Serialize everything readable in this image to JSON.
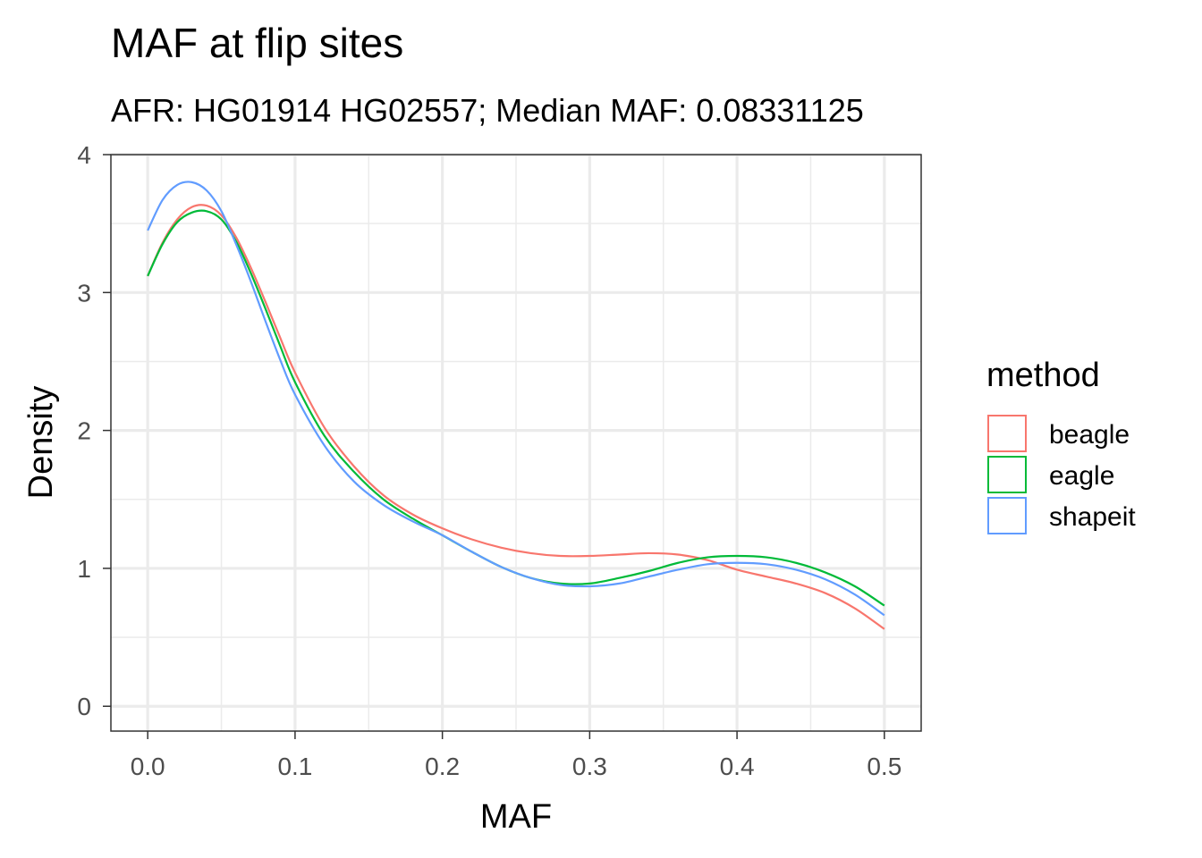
{
  "chart_data": {
    "type": "line",
    "title": "MAF at flip sites",
    "subtitle": "AFR: HG01914 HG02557; Median MAF: 0.08331125",
    "xlabel": "MAF",
    "ylabel": "Density",
    "xlim": [
      -0.025,
      0.525
    ],
    "ylim": [
      -0.18,
      4.0
    ],
    "x_ticks": [
      0.0,
      0.1,
      0.2,
      0.3,
      0.4,
      0.5
    ],
    "x_tick_labels": [
      "0.0",
      "0.1",
      "0.2",
      "0.3",
      "0.4",
      "0.5"
    ],
    "y_ticks": [
      0,
      1,
      2,
      3,
      4
    ],
    "y_tick_labels": [
      "0",
      "1",
      "2",
      "3",
      "4"
    ],
    "grid": true,
    "legend_title": "method",
    "legend_position": "right",
    "series": [
      {
        "name": "beagle",
        "color": "#F8766D",
        "x": [
          0.0,
          0.01,
          0.02,
          0.03,
          0.04,
          0.05,
          0.06,
          0.07,
          0.08,
          0.09,
          0.1,
          0.12,
          0.14,
          0.16,
          0.18,
          0.2,
          0.22,
          0.24,
          0.26,
          0.28,
          0.3,
          0.32,
          0.34,
          0.36,
          0.38,
          0.4,
          0.42,
          0.44,
          0.46,
          0.48,
          0.5
        ],
        "y": [
          3.12,
          3.36,
          3.53,
          3.62,
          3.63,
          3.56,
          3.4,
          3.18,
          2.93,
          2.67,
          2.42,
          2.02,
          1.74,
          1.53,
          1.39,
          1.29,
          1.21,
          1.15,
          1.11,
          1.09,
          1.09,
          1.1,
          1.11,
          1.1,
          1.06,
          0.99,
          0.94,
          0.89,
          0.82,
          0.71,
          0.56
        ]
      },
      {
        "name": "eagle",
        "color": "#00BA38",
        "x": [
          0.0,
          0.01,
          0.02,
          0.03,
          0.04,
          0.05,
          0.06,
          0.07,
          0.08,
          0.09,
          0.1,
          0.12,
          0.14,
          0.16,
          0.18,
          0.2,
          0.22,
          0.24,
          0.26,
          0.28,
          0.3,
          0.32,
          0.34,
          0.36,
          0.38,
          0.4,
          0.42,
          0.44,
          0.46,
          0.48,
          0.5
        ],
        "y": [
          3.12,
          3.35,
          3.51,
          3.58,
          3.59,
          3.53,
          3.37,
          3.14,
          2.88,
          2.61,
          2.35,
          1.96,
          1.7,
          1.5,
          1.36,
          1.24,
          1.12,
          1.01,
          0.93,
          0.89,
          0.89,
          0.93,
          0.98,
          1.04,
          1.08,
          1.09,
          1.08,
          1.04,
          0.97,
          0.87,
          0.73
        ]
      },
      {
        "name": "shapeit",
        "color": "#619CFF",
        "x": [
          0.0,
          0.01,
          0.02,
          0.03,
          0.04,
          0.05,
          0.06,
          0.07,
          0.08,
          0.09,
          0.1,
          0.12,
          0.14,
          0.16,
          0.18,
          0.2,
          0.22,
          0.24,
          0.26,
          0.28,
          0.3,
          0.32,
          0.34,
          0.36,
          0.38,
          0.4,
          0.42,
          0.44,
          0.46,
          0.48,
          0.5
        ],
        "y": [
          3.45,
          3.67,
          3.78,
          3.8,
          3.74,
          3.59,
          3.35,
          3.08,
          2.79,
          2.51,
          2.26,
          1.89,
          1.63,
          1.46,
          1.34,
          1.24,
          1.12,
          1.01,
          0.93,
          0.88,
          0.87,
          0.89,
          0.94,
          0.99,
          1.03,
          1.04,
          1.03,
          0.99,
          0.92,
          0.81,
          0.66
        ]
      }
    ]
  }
}
